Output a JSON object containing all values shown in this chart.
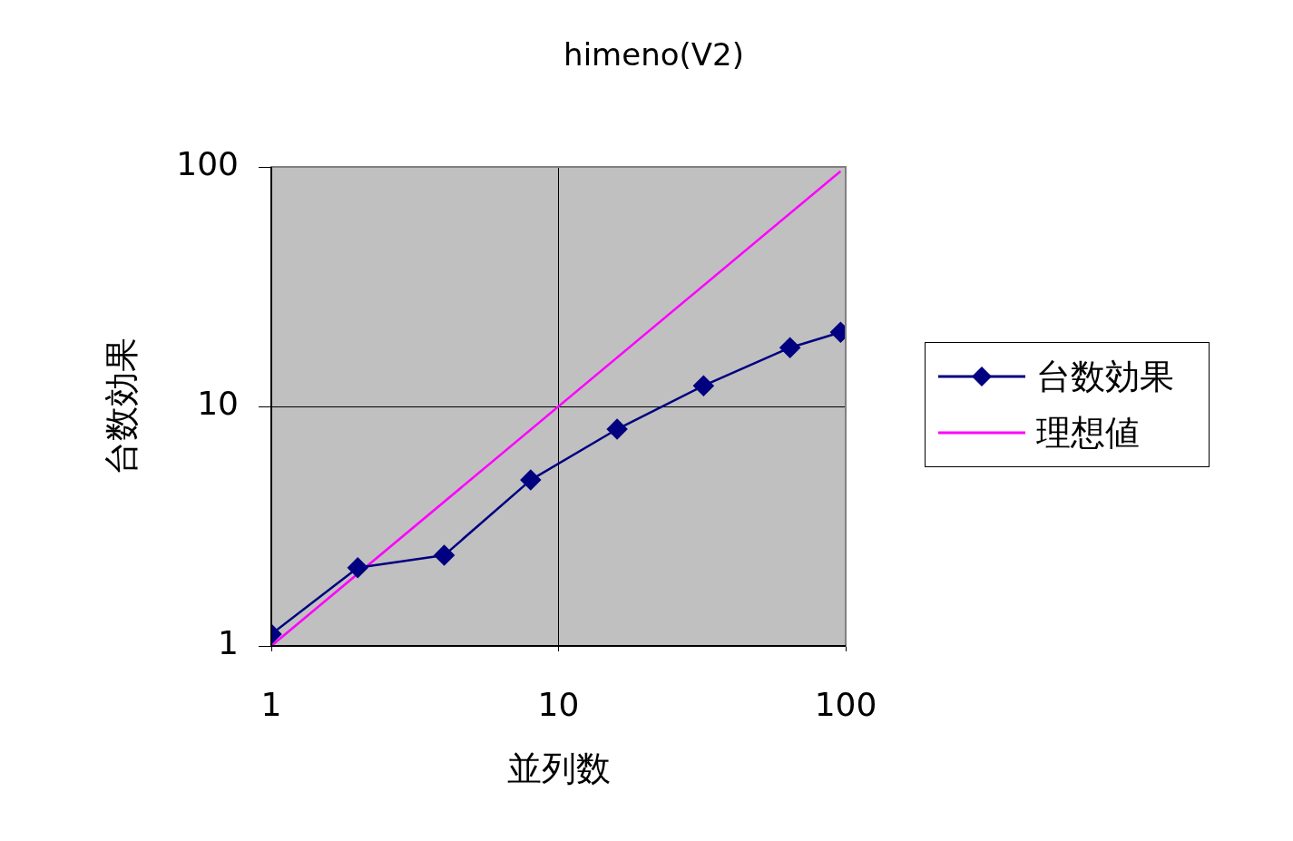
{
  "chart_data": {
    "type": "line",
    "title": "himeno(V2)",
    "xlabel": "並列数",
    "ylabel": "台数効果",
    "log": "xy",
    "grid": true,
    "legend": "right",
    "xlim": [
      1,
      100
    ],
    "xticks": [
      1,
      10,
      100
    ],
    "ylim": [
      1,
      100
    ],
    "yticks": [
      1,
      10,
      100
    ],
    "series": [
      {
        "name": "台数効果",
        "color": "#000080",
        "marker": "diamond",
        "x": [
          1,
          2,
          4,
          8,
          16,
          32,
          64,
          96
        ],
        "values": [
          1.12,
          2.12,
          2.39,
          4.93,
          8.04,
          12.2,
          17.6,
          20.4
        ]
      },
      {
        "name": "理想値",
        "color": "#ff00ff",
        "marker": "none",
        "x": [
          1,
          96
        ],
        "values": [
          1,
          96
        ]
      }
    ]
  }
}
